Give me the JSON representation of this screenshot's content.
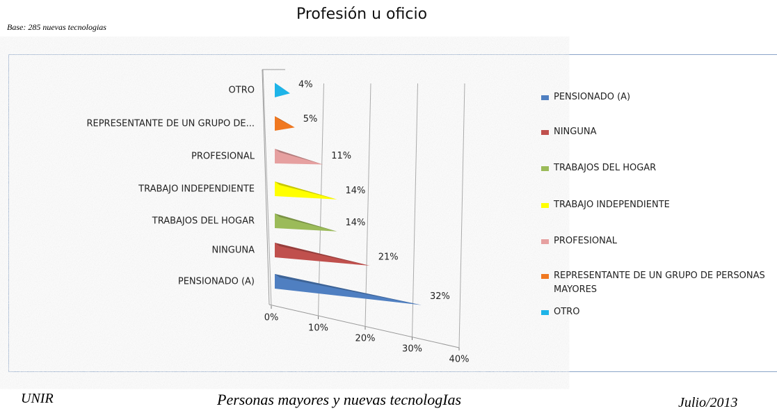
{
  "title": "Profesión u oficio",
  "subtitle": "Base: 285 nuevas tecnologias",
  "chart_data": {
    "type": "bar3d",
    "categories": [
      "PENSIONADO (A)",
      "NINGUNA",
      "TRABAJOS DEL HOGAR",
      "TRABAJO INDEPENDIENTE",
      "PROFESIONAL",
      "REPRESENTANTE  DE UN GRUPO DE...",
      "OTRO"
    ],
    "legend": [
      "PENSIONADO (A)",
      "NINGUNA",
      "TRABAJOS DEL HOGAR",
      "TRABAJO INDEPENDIENTE",
      "PROFESIONAL",
      "REPRESENTANTE  DE UN GRUPO DE PERSONAS MAYORES",
      "OTRO"
    ],
    "colors": [
      "#4f7fc1",
      "#c0504d",
      "#9bbb59",
      "#ffff00",
      "#e6a0a0",
      "#f07820",
      "#1eb4e8"
    ],
    "values": [
      32,
      21,
      14,
      14,
      11,
      5,
      4
    ],
    "value_labels": [
      "32%",
      "21%",
      "14%",
      "14%",
      "11%",
      "5%",
      "4%"
    ],
    "xlim": [
      0,
      40
    ],
    "xticks": [
      {
        "value": 0,
        "label": "0%"
      },
      {
        "value": 10,
        "label": "10%"
      },
      {
        "value": 20,
        "label": "20%"
      },
      {
        "value": 30,
        "label": "30%"
      },
      {
        "value": 40,
        "label": "40%"
      }
    ],
    "grid": true
  },
  "footer": {
    "left": "UNIR",
    "center": "Personas mayores y nuevas tecnologIas",
    "right": "Julio/2013"
  }
}
